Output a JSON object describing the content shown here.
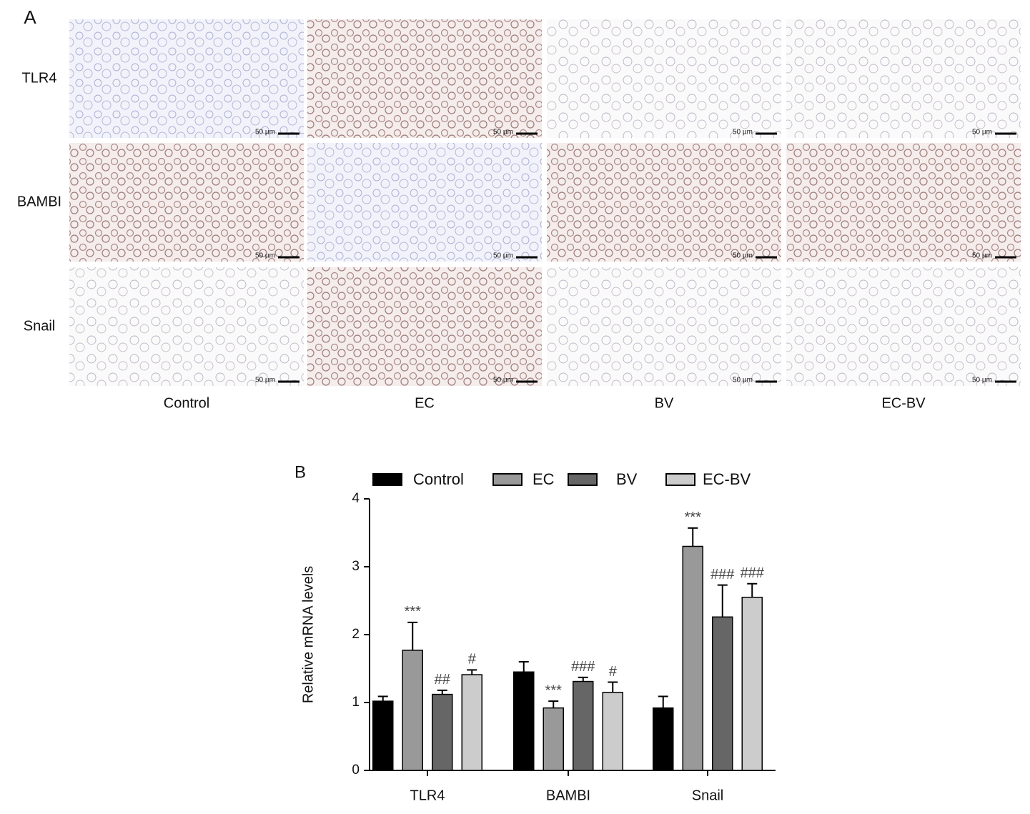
{
  "panel_a": {
    "label": "A",
    "rows": [
      "TLR4",
      "BAMBI",
      "Snail"
    ],
    "columns": [
      "Control",
      "EC",
      "BV",
      "EC-BV"
    ],
    "scale_bar": "50 µm"
  },
  "chart_data": {
    "type": "bar",
    "label": "B",
    "ylabel": "Relative mRNA levels",
    "categories": [
      "TLR4",
      "BAMBI",
      "Snail"
    ],
    "series": [
      {
        "name": "Control",
        "color": "#000000",
        "values": [
          1.02,
          1.45,
          0.92
        ],
        "errors": [
          0.07,
          0.15,
          0.17
        ],
        "annotations": [
          null,
          null,
          null
        ]
      },
      {
        "name": "EC",
        "color": "#999999",
        "values": [
          1.77,
          0.92,
          3.3
        ],
        "errors": [
          0.41,
          0.1,
          0.27
        ],
        "annotations": [
          "***",
          "***",
          "***"
        ]
      },
      {
        "name": "BV",
        "color": "#666666",
        "values": [
          1.12,
          1.31,
          2.26
        ],
        "errors": [
          0.06,
          0.06,
          0.47
        ],
        "annotations": [
          "##",
          "###",
          "###"
        ]
      },
      {
        "name": "EC-BV",
        "color": "#cccccc",
        "values": [
          1.41,
          1.15,
          2.55
        ],
        "errors": [
          0.07,
          0.15,
          0.2
        ],
        "annotations": [
          "#",
          "#",
          "###"
        ]
      }
    ],
    "ylim": [
      0,
      4
    ],
    "yticks": [
      0,
      1,
      2,
      3,
      4
    ],
    "grid": false
  }
}
